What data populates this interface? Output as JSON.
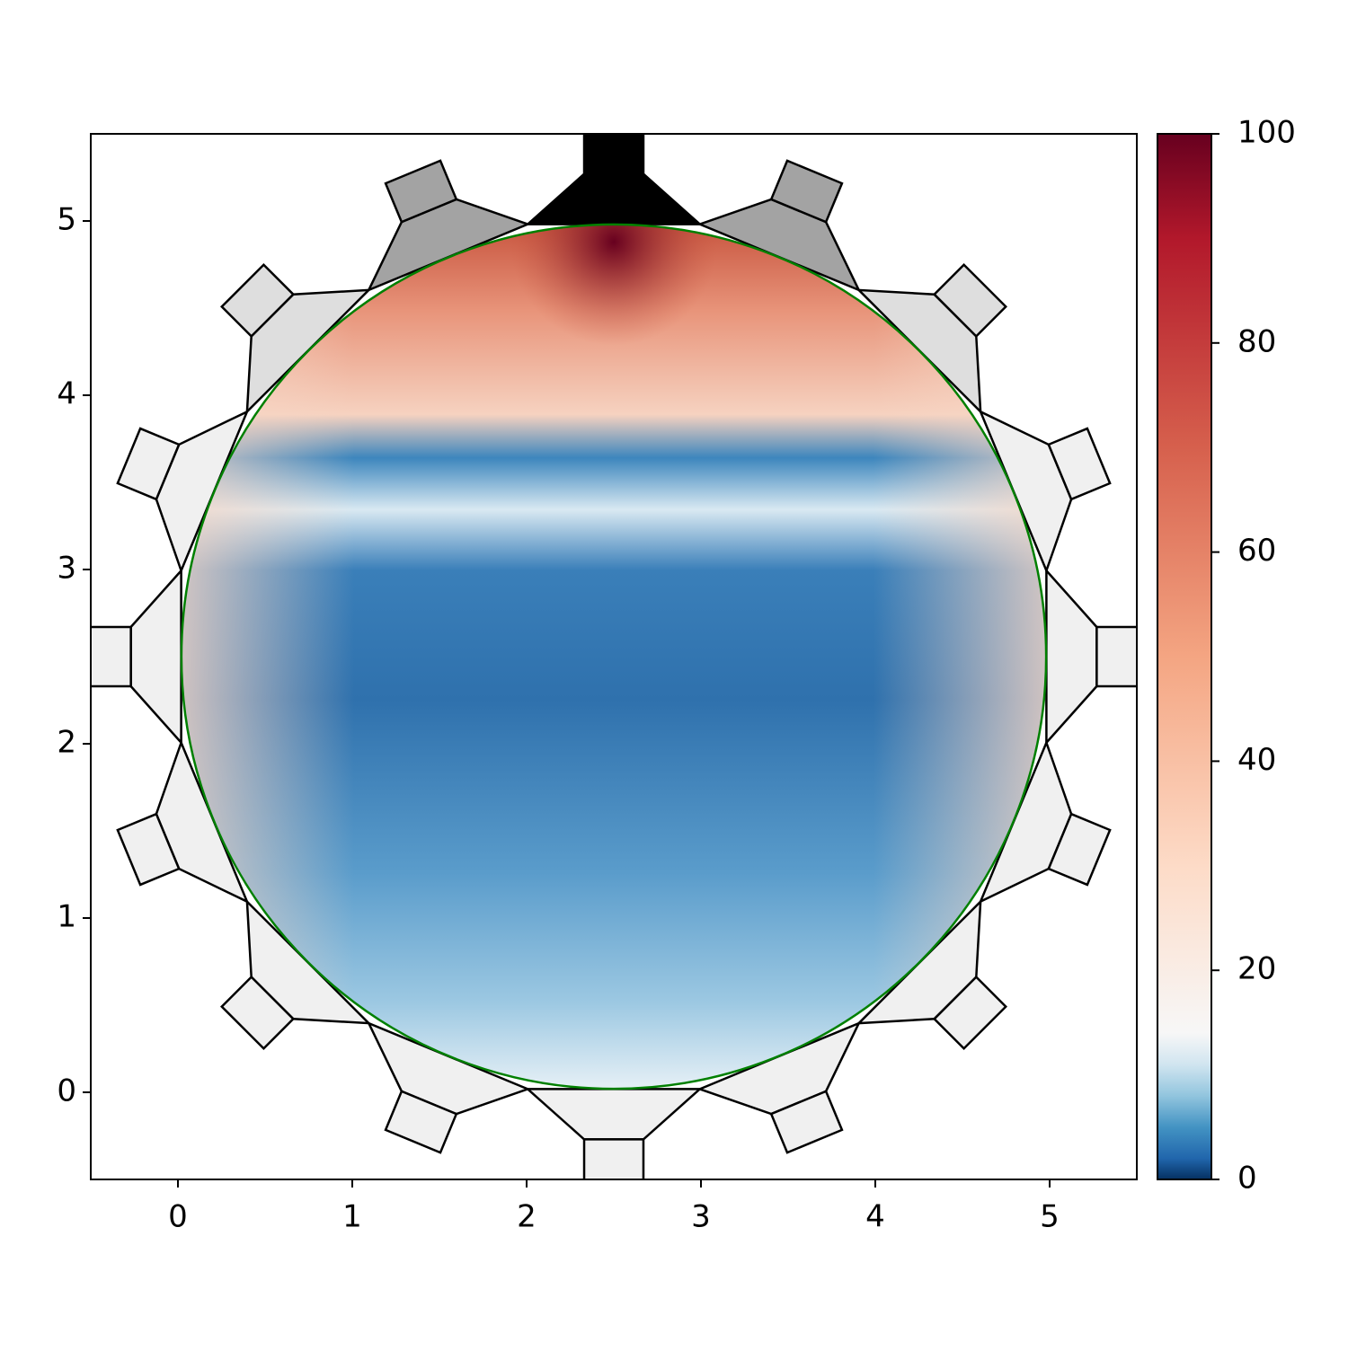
{
  "chart_data": {
    "type": "heatmap",
    "xlim": [
      -0.5,
      5.5
    ],
    "ylim": [
      -0.5,
      5.5
    ],
    "xticks": [
      0,
      1,
      2,
      3,
      4,
      5
    ],
    "yticks": [
      0,
      1,
      2,
      3,
      4,
      5
    ],
    "colorbar": {
      "lim": [
        0,
        100
      ],
      "ticks": [
        0,
        20,
        40,
        60,
        80,
        100
      ]
    }
  }
}
